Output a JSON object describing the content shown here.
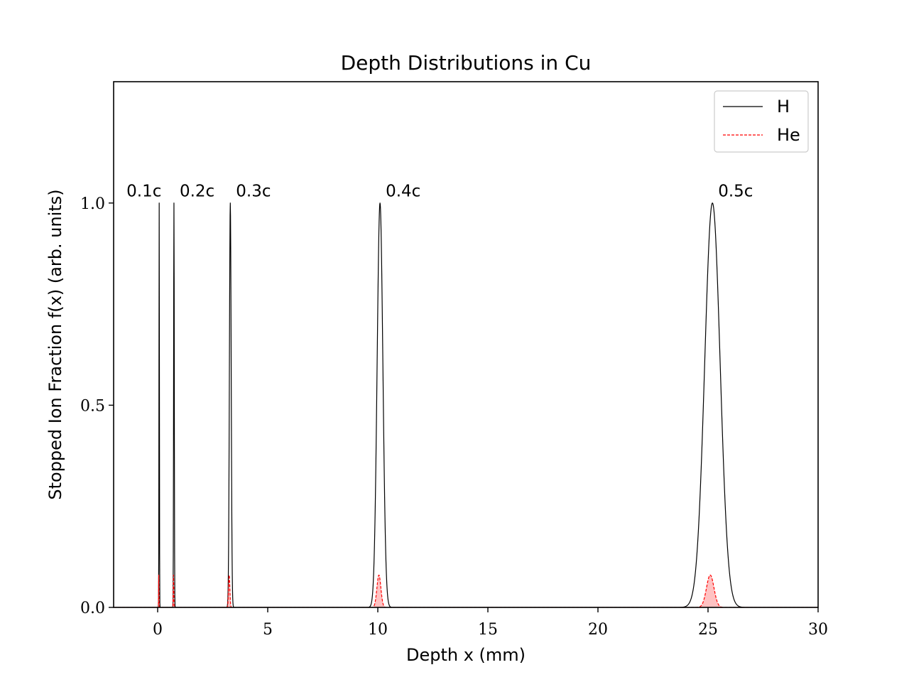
{
  "chart_data": {
    "type": "line",
    "title": "Depth Distributions in Cu",
    "xlabel": "Depth x (mm)",
    "ylabel": "Stopped Ion Fraction f(x) (arb. units)",
    "xlim": [
      -2,
      30
    ],
    "ylim": [
      0,
      1.3
    ],
    "xticks": [
      0,
      5,
      10,
      15,
      20,
      25,
      30
    ],
    "xtick_labels": [
      "0",
      "5",
      "10",
      "15",
      "20",
      "25",
      "30"
    ],
    "yticks": [
      0.0,
      0.5,
      1.0
    ],
    "ytick_labels": [
      "0.0",
      "0.5",
      "1.0"
    ],
    "legend": {
      "placement": "top-right"
    },
    "series": [
      {
        "name": "H",
        "color": "#000000",
        "style": "solid",
        "peaks": [
          {
            "center": 0.07,
            "sigma": 0.01,
            "amplitude": 1.0
          },
          {
            "center": 0.74,
            "sigma": 0.015,
            "amplitude": 1.0
          },
          {
            "center": 3.3,
            "sigma": 0.04,
            "amplitude": 1.0
          },
          {
            "center": 10.1,
            "sigma": 0.13,
            "amplitude": 1.0
          },
          {
            "center": 25.2,
            "sigma": 0.35,
            "amplitude": 1.0
          }
        ]
      },
      {
        "name": "He",
        "color": "#ff0000",
        "style": "dashed",
        "fill": "#ffb3b3",
        "peaks": [
          {
            "center": 0.05,
            "sigma": 0.008,
            "amplitude": 0.08
          },
          {
            "center": 0.72,
            "sigma": 0.012,
            "amplitude": 0.08
          },
          {
            "center": 3.25,
            "sigma": 0.03,
            "amplitude": 0.08
          },
          {
            "center": 10.05,
            "sigma": 0.09,
            "amplitude": 0.08
          },
          {
            "center": 25.1,
            "sigma": 0.17,
            "amplitude": 0.08
          }
        ]
      }
    ],
    "annotations": [
      {
        "text": "0.1c",
        "x": 0.07,
        "y": 1.03
      },
      {
        "text": "0.2c",
        "x": 0.74,
        "y": 1.03
      },
      {
        "text": "0.3c",
        "x": 3.3,
        "y": 1.03
      },
      {
        "text": "0.4c",
        "x": 10.1,
        "y": 1.03
      },
      {
        "text": "0.5c",
        "x": 25.2,
        "y": 1.03
      }
    ]
  }
}
